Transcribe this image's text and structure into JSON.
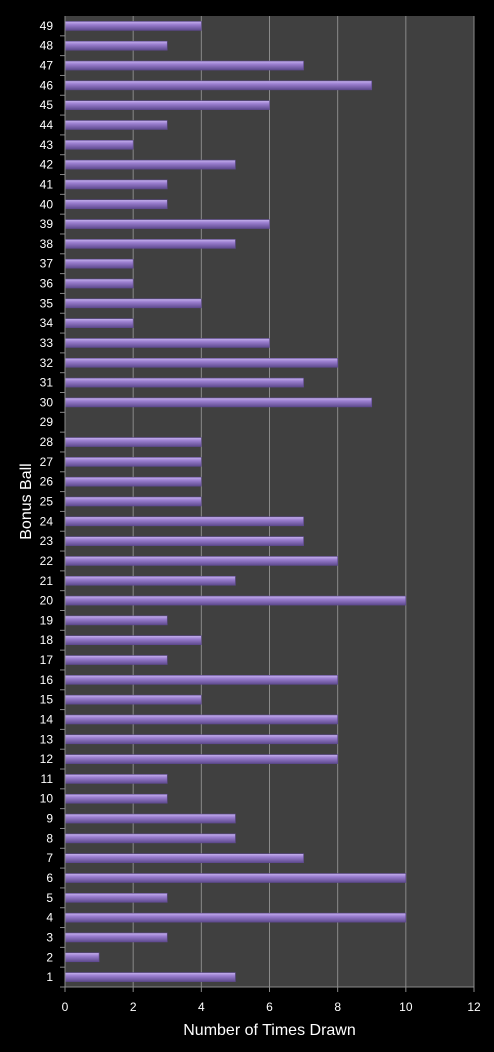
{
  "chart_data": {
    "type": "bar",
    "orientation": "horizontal",
    "title": "",
    "xlabel": "Number of Times Drawn",
    "ylabel": "Bonus Ball",
    "xlim": [
      0,
      12
    ],
    "x_ticks": [
      0,
      2,
      4,
      6,
      8,
      10,
      12
    ],
    "grid": "vertical",
    "legend": "none",
    "categories": [
      "1",
      "2",
      "3",
      "4",
      "5",
      "6",
      "7",
      "8",
      "9",
      "10",
      "11",
      "12",
      "13",
      "14",
      "15",
      "16",
      "17",
      "18",
      "19",
      "20",
      "21",
      "22",
      "23",
      "24",
      "25",
      "26",
      "27",
      "28",
      "29",
      "30",
      "31",
      "32",
      "33",
      "34",
      "35",
      "36",
      "37",
      "38",
      "39",
      "40",
      "41",
      "42",
      "43",
      "44",
      "45",
      "46",
      "47",
      "48",
      "49"
    ],
    "values": [
      5,
      1,
      3,
      10,
      3,
      10,
      7,
      5,
      5,
      3,
      3,
      8,
      8,
      8,
      4,
      8,
      3,
      4,
      3,
      10,
      5,
      8,
      7,
      7,
      4,
      4,
      4,
      4,
      0,
      9,
      7,
      8,
      6,
      2,
      4,
      2,
      2,
      5,
      6,
      3,
      3,
      5,
      2,
      3,
      6,
      9,
      7,
      3,
      4
    ],
    "colors": {
      "bar": "#9b7fd0",
      "bar_light": "#c7b3ef",
      "bar_dark": "#5e4a8e",
      "plot_background": "#404040",
      "page_background": "#000000",
      "gridline": "#8a8a8a",
      "text": "#ffffff"
    }
  }
}
